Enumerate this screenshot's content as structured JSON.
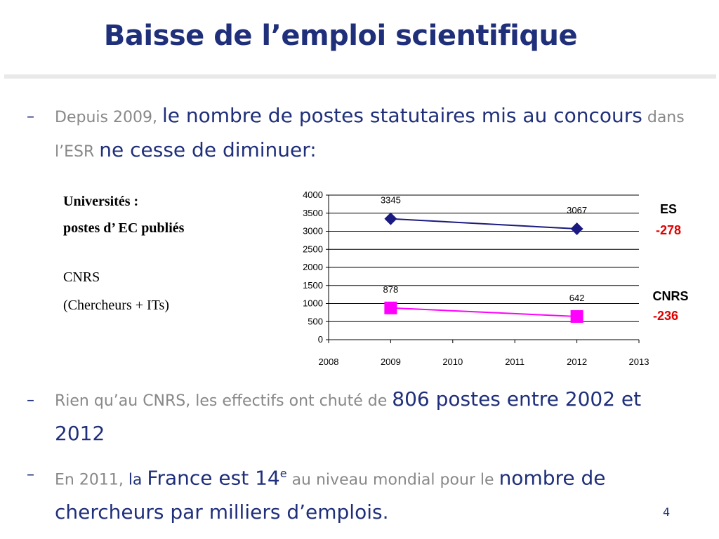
{
  "slide": {
    "title": "Baisse de l’emploi scientifique",
    "page_number": "4"
  },
  "bullets": {
    "b1": {
      "part1": "Depuis 2009, ",
      "part2": "le nombre de postes statutaires mis au concours",
      "part3": " dans l’ESR ",
      "part4": "ne cesse de diminuer:"
    },
    "b2": {
      "part1": "Rien qu’au CNRS, les effectifs ont chuté de ",
      "part2": "806 postes entre 2002 et 2012"
    },
    "b3": {
      "part1": "En 2011, ",
      "part2": "la ",
      "part3": "France est 14",
      "sup": "e",
      "part4": " au niveau mondial pour le ",
      "part5": "nombre de chercheurs par milliers d’emplois."
    }
  },
  "left_labels": {
    "line1": "Universités :",
    "line2": "postes d’ EC publiés",
    "line3": "CNRS",
    "line4": "(Chercheurs + ITs)"
  },
  "side_labels": {
    "es_name": "ES",
    "es_value": "-278",
    "cnrs_name": "CNRS",
    "cnrs_value": "-236"
  },
  "chart_data": {
    "type": "line",
    "xlim": [
      2008,
      2013
    ],
    "ylim": [
      0,
      4000
    ],
    "x_ticks": [
      2008,
      2009,
      2010,
      2011,
      2012,
      2013
    ],
    "y_ticks": [
      0,
      500,
      1000,
      1500,
      2000,
      2500,
      3000,
      3500,
      4000
    ],
    "grid": true,
    "series": [
      {
        "points": [
          {
            "x": 2009,
            "y": 3345,
            "label": "3345"
          },
          {
            "x": 2012,
            "y": 3067,
            "label": "3067"
          }
        ],
        "color": "#1a1a80",
        "marker": "diamond"
      },
      {
        "points": [
          {
            "x": 2009,
            "y": 878,
            "label": "878"
          },
          {
            "x": 2012,
            "y": 642,
            "label": "642"
          }
        ],
        "color": "#ff00ff",
        "marker": "square"
      }
    ]
  }
}
